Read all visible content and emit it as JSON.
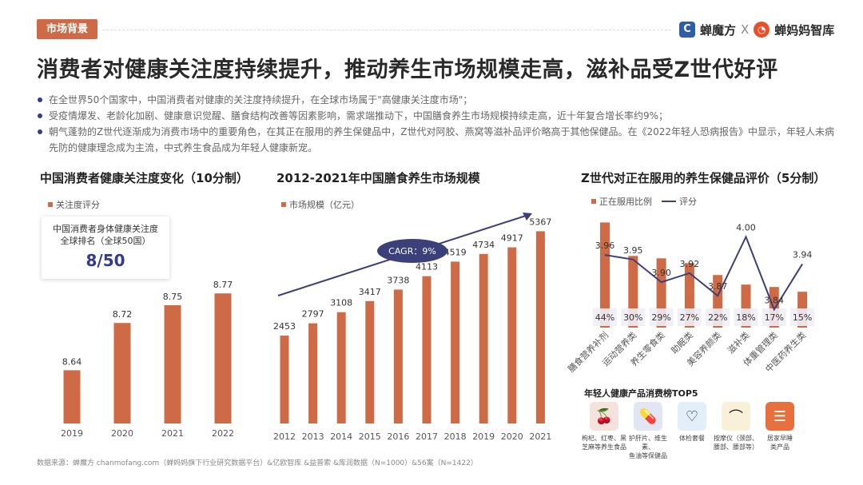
{
  "header": {
    "tag": "市场背景",
    "brand_left": "蝉魔方",
    "brand_sep": "X",
    "brand_right": "蝉妈妈智库",
    "title": "消费者对健康关注度持续提升，推动养生市场规模走高，滋补品受Z世代好评"
  },
  "bullets": [
    "在全世界50个国家中，中国消费者对健康的关注度持续提升，在全球市场属于\"高健康关注度市场\"；",
    "受疫情爆发、老龄化加剧、健康意识觉醒、膳食结构改善等因素影响，需求端推动下，中国膳食养生市场规模持续走高，近十年复合增长率约9%；",
    "朝气蓬勃的Z世代逐渐成为消费市场中的重要角色，在其正在服用的养生保健品中，Z世代对阿胶、燕窝等滋补品评价略高于其他保健品。在《2022年轻人恐病报告》中显示，年轻人未病先防的健康理念成为主流，中式养生食品成为年轻人健康新宠。"
  ],
  "rank_box": {
    "line1": "中国消费者身体健康关注度",
    "line2": "全球排名（全球50国）",
    "value": "8/50"
  },
  "top5": {
    "title": "年轻人健康产品消费榜TOP5",
    "items": [
      {
        "icon": "goji-jujube-icon",
        "line1": "枸杞、红枣、黑",
        "line2": "芝麻等养生食品"
      },
      {
        "icon": "supplement-icon",
        "line1": "护肝片、维生素、",
        "line2": "鱼油等保健品"
      },
      {
        "icon": "checkup-icon",
        "line1": "体检套餐",
        "line2": ""
      },
      {
        "icon": "massager-icon",
        "line1": "按摩仪（颈部、",
        "line2": "腰部、腰部等）"
      },
      {
        "icon": "sleep-product-icon",
        "line1": "居家早睡",
        "line2": "类产品"
      }
    ]
  },
  "source": "数据来源：蝉魔方 chanmofang.com（蝉妈妈旗下行业研究数据平台）&亿欧智库 &益普索 &库润数据（N=1000）&56案（N=1422）",
  "colors": {
    "bar": "#cf6a47",
    "line": "#3b3f7a",
    "accent": "#333b8f"
  },
  "chart_data": [
    {
      "type": "bar",
      "title": "中国消费者健康关注度变化（10分制）",
      "legend": [
        "关注度评分"
      ],
      "categories": [
        "2019",
        "2020",
        "2021",
        "2022"
      ],
      "values": [
        8.64,
        8.72,
        8.75,
        8.77
      ],
      "value_labels": [
        "8.64",
        "8.72",
        "8.75",
        "8.77"
      ],
      "ylim": [
        8.55,
        8.8
      ]
    },
    {
      "type": "bar",
      "title": "2012-2021年中国膳食养生市场规模",
      "legend": [
        "市场规模（亿元）"
      ],
      "categories": [
        "2012",
        "2013",
        "2014",
        "2015",
        "2016",
        "2017",
        "2018",
        "2019",
        "2020",
        "2021"
      ],
      "values": [
        2453,
        2797,
        3108,
        3417,
        3738,
        4113,
        4519,
        4734,
        4917,
        5367
      ],
      "ylim": [
        0,
        5800
      ],
      "annotation": "CAGR：9%"
    },
    {
      "type": "bar+line",
      "title": "Z世代对正在服用的养生保健品评价（5分制）",
      "legend": [
        "正在服用比例",
        "评分"
      ],
      "categories": [
        "膳食营养补剂",
        "运动营养类",
        "养生零食类",
        "助眠类",
        "美容养颜类",
        "滋补类",
        "体重管理类",
        "中医药养生类"
      ],
      "bar_values": [
        44,
        30,
        29,
        27,
        22,
        18,
        17,
        15
      ],
      "bar_labels": [
        "44%",
        "30%",
        "29%",
        "27%",
        "22%",
        "18%",
        "17%",
        "15%"
      ],
      "line_values": [
        3.96,
        3.95,
        3.9,
        3.92,
        3.87,
        4.0,
        3.84,
        3.94
      ],
      "line_labels": [
        "3.96",
        "3.95",
        "3.90",
        "3.92",
        "3.87",
        "4.00",
        "3.84",
        "3.94"
      ],
      "bar_ylim": [
        0,
        50
      ],
      "line_ylim": [
        3.8,
        4.02
      ]
    }
  ]
}
